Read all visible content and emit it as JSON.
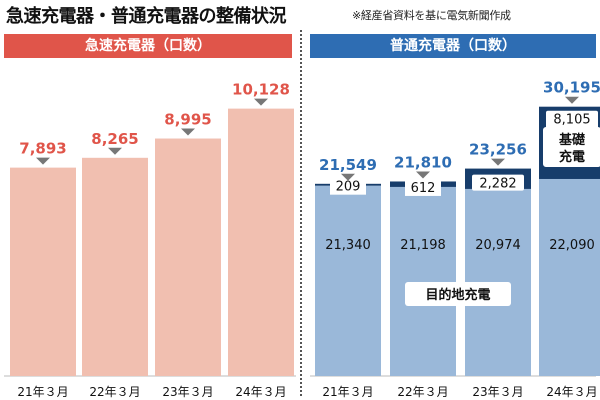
{
  "title": "急速充電器・普通充電器の整備状況",
  "source": "※経産省資料を基に電気新聞作成",
  "colors": {
    "fast_header": "#e0554a",
    "std_header": "#2e6db3",
    "fast_bar": "#f1bfb0",
    "fast_value": "#e0554a",
    "std_bar": "#9ab8d9",
    "std_top": "#173d6b",
    "std_value": "#2e6db3",
    "marker": "#777777"
  },
  "chart_data": [
    {
      "type": "bar",
      "title": "急速充電器（口数）",
      "categories": [
        "21年３月",
        "22年３月",
        "23年３月",
        "24年３月"
      ],
      "series": [
        {
          "values": [
            7893,
            8265,
            8995,
            10128
          ]
        }
      ],
      "value_labels": [
        "7,893",
        "8,265",
        "8,995",
        "10,128"
      ],
      "ylim": [
        0,
        12500
      ]
    },
    {
      "type": "bar",
      "stacked": true,
      "title": "普通充電器（口数）",
      "categories": [
        "21年３月",
        "22年３月",
        "23年３月",
        "24年３月"
      ],
      "series": [
        {
          "name": "目的地充電",
          "values": [
            21340,
            21198,
            20974,
            22090
          ],
          "labels": [
            "21,340",
            "21,198",
            "20,974",
            "22,090"
          ]
        },
        {
          "name": "基礎充電",
          "values": [
            209,
            612,
            2282,
            8105
          ],
          "labels": [
            "209",
            "612",
            "2,282",
            "8,105"
          ]
        }
      ],
      "totals": [
        21549,
        21810,
        23256,
        30195
      ],
      "total_labels": [
        "21,549",
        "21,810",
        "23,256",
        "30,195"
      ],
      "ylim": [
        0,
        37000
      ]
    }
  ]
}
